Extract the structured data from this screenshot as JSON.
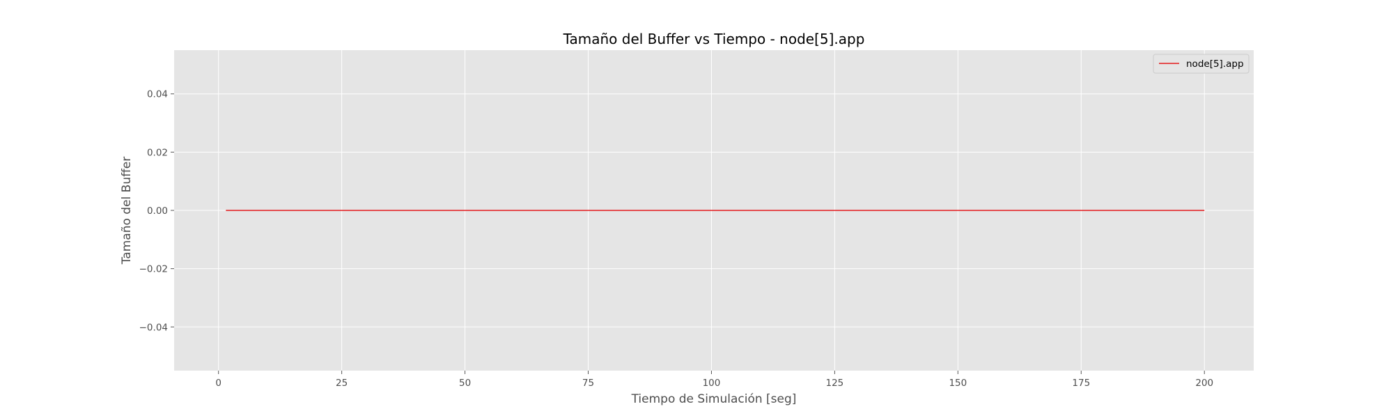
{
  "chart_data": {
    "type": "line",
    "title": "Tamaño del Buffer vs Tiempo - node[5].app",
    "xlabel": "Tiempo de Simulación [seg]",
    "ylabel": "Tamaño del Buffer",
    "xlim": [
      -9,
      210
    ],
    "ylim": [
      -0.055,
      0.055
    ],
    "x_ticks": [
      0,
      25,
      50,
      75,
      100,
      125,
      150,
      175,
      200
    ],
    "x_tick_labels": [
      "0",
      "25",
      "50",
      "75",
      "100",
      "125",
      "150",
      "175",
      "200"
    ],
    "y_ticks": [
      -0.04,
      -0.02,
      0.0,
      0.02,
      0.04
    ],
    "y_tick_labels": [
      "−0.04",
      "−0.02",
      "0.00",
      "0.02",
      "0.04"
    ],
    "grid": true,
    "legend_position": "top-right",
    "series": [
      {
        "name": "node[5].app",
        "color": "#e41a1c",
        "x": [
          1.5,
          200
        ],
        "y": [
          0,
          0
        ]
      }
    ]
  }
}
